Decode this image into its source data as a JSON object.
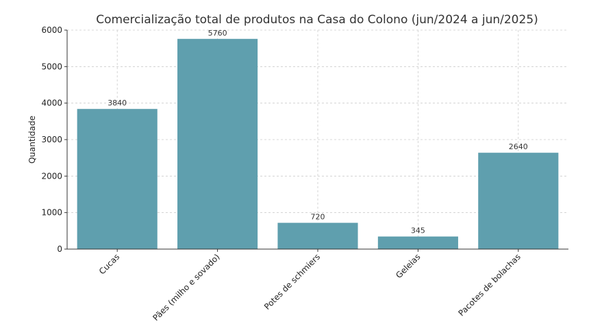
{
  "chart_data": {
    "type": "bar",
    "title": "Comercialização total de produtos na Casa do Colono (jun/2024 a jun/2025)",
    "xlabel": "",
    "ylabel": "Quantidade",
    "categories": [
      "Cucas",
      "Pães (milho e sovado)",
      "Potes de schmiers",
      "Geleias",
      "Pacotes de bolachas"
    ],
    "values": [
      3840,
      5760,
      720,
      345,
      2640
    ],
    "data_labels": [
      "3840",
      "5760",
      "720",
      "345",
      "2640"
    ],
    "ylim": [
      0,
      6000
    ],
    "yticks": [
      0,
      1000,
      2000,
      3000,
      4000,
      5000,
      6000
    ],
    "grid": true,
    "bar_color": "#5f9fae"
  }
}
